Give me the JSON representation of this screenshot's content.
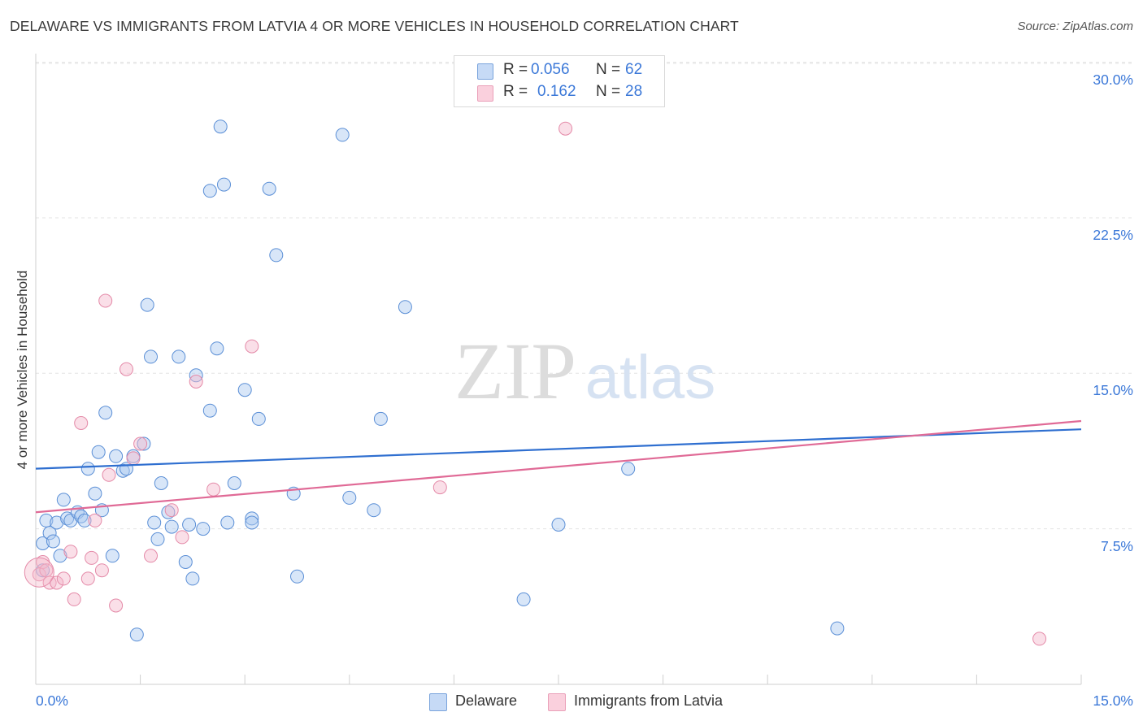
{
  "header": {
    "title": "DELAWARE VS IMMIGRANTS FROM LATVIA 4 OR MORE VEHICLES IN HOUSEHOLD CORRELATION CHART",
    "source": "Source: ZipAtlas.com"
  },
  "watermark": {
    "zip": "ZIP",
    "atlas": "atlas"
  },
  "legend": {
    "r_label": "R =",
    "n_label": "N =",
    "rows": [
      {
        "r": "0.056",
        "n": "62",
        "color": "#a8c8f0"
      },
      {
        "r": "0.162",
        "n": "28",
        "color": "#f5b8cb"
      }
    ]
  },
  "bottom_legend": [
    "Delaware",
    "Immigrants from Latvia"
  ],
  "axes": {
    "y_label": "4 or more Vehicles in Household",
    "y_ticks": [
      "7.5%",
      "15.0%",
      "22.5%",
      "30.0%"
    ],
    "x_ticks": [
      "0.0%",
      "15.0%"
    ]
  },
  "chart_data": {
    "type": "scatter",
    "title": "DELAWARE VS IMMIGRANTS FROM LATVIA 4 OR MORE VEHICLES IN HOUSEHOLD CORRELATION CHART",
    "xlabel": "",
    "ylabel": "4 or more Vehicles in Household",
    "xlim": [
      0,
      15
    ],
    "ylim": [
      0,
      30.5
    ],
    "grid": true,
    "legend_position": "top-center",
    "series": [
      {
        "name": "Delaware",
        "color": "#a8c8f0",
        "stroke": "#5b8fd6",
        "trend": [
          [
            0,
            10.4
          ],
          [
            15,
            12.3
          ]
        ],
        "trend_color": "#2f6fd0",
        "points": [
          [
            0.1,
            6.8
          ],
          [
            0.15,
            7.9
          ],
          [
            0.2,
            7.3
          ],
          [
            0.25,
            6.9
          ],
          [
            0.3,
            7.8
          ],
          [
            0.35,
            6.2
          ],
          [
            0.4,
            8.9
          ],
          [
            0.45,
            8.0
          ],
          [
            0.5,
            7.9
          ],
          [
            0.6,
            8.3
          ],
          [
            0.65,
            8.1
          ],
          [
            0.7,
            7.9
          ],
          [
            0.75,
            10.4
          ],
          [
            0.85,
            9.2
          ],
          [
            0.9,
            11.2
          ],
          [
            0.95,
            8.4
          ],
          [
            1.0,
            13.1
          ],
          [
            1.1,
            6.2
          ],
          [
            1.15,
            11.0
          ],
          [
            1.25,
            10.3
          ],
          [
            1.3,
            10.4
          ],
          [
            1.4,
            11.0
          ],
          [
            1.45,
            2.4
          ],
          [
            1.55,
            11.6
          ],
          [
            1.6,
            18.3
          ],
          [
            1.65,
            15.8
          ],
          [
            1.7,
            7.8
          ],
          [
            1.75,
            7.0
          ],
          [
            1.8,
            9.7
          ],
          [
            1.9,
            8.3
          ],
          [
            1.95,
            7.6
          ],
          [
            2.05,
            15.8
          ],
          [
            2.15,
            5.9
          ],
          [
            2.2,
            7.7
          ],
          [
            2.25,
            5.1
          ],
          [
            2.3,
            14.9
          ],
          [
            2.4,
            7.5
          ],
          [
            2.5,
            13.2
          ],
          [
            2.5,
            23.8
          ],
          [
            2.6,
            16.2
          ],
          [
            2.65,
            26.9
          ],
          [
            2.7,
            24.1
          ],
          [
            2.75,
            7.8
          ],
          [
            2.85,
            9.7
          ],
          [
            3.0,
            14.2
          ],
          [
            3.1,
            8.0
          ],
          [
            3.1,
            7.8
          ],
          [
            3.2,
            12.8
          ],
          [
            3.35,
            23.9
          ],
          [
            3.45,
            20.7
          ],
          [
            3.7,
            9.2
          ],
          [
            3.75,
            5.2
          ],
          [
            4.4,
            26.5
          ],
          [
            4.5,
            9.0
          ],
          [
            4.85,
            8.4
          ],
          [
            4.95,
            12.8
          ],
          [
            5.3,
            18.2
          ],
          [
            7.5,
            7.7
          ],
          [
            8.5,
            10.4
          ],
          [
            7.0,
            4.1
          ],
          [
            11.5,
            2.7
          ],
          [
            0.1,
            5.5
          ]
        ]
      },
      {
        "name": "Immigrants from Latvia",
        "color": "#f5b8cb",
        "stroke": "#e48aa8",
        "trend": [
          [
            0,
            8.3
          ],
          [
            15,
            12.7
          ]
        ],
        "trend_color": "#e06a96",
        "points": [
          [
            0.05,
            5.3
          ],
          [
            0.1,
            5.9
          ],
          [
            0.15,
            5.5
          ],
          [
            0.2,
            4.9
          ],
          [
            0.3,
            4.9
          ],
          [
            0.4,
            5.1
          ],
          [
            0.5,
            6.4
          ],
          [
            0.55,
            4.1
          ],
          [
            0.65,
            12.6
          ],
          [
            0.75,
            5.1
          ],
          [
            0.8,
            6.1
          ],
          [
            0.85,
            7.9
          ],
          [
            0.95,
            5.5
          ],
          [
            1.0,
            18.5
          ],
          [
            1.05,
            10.1
          ],
          [
            1.15,
            3.8
          ],
          [
            1.3,
            15.2
          ],
          [
            1.4,
            10.9
          ],
          [
            1.5,
            11.6
          ],
          [
            1.65,
            6.2
          ],
          [
            1.95,
            8.4
          ],
          [
            2.1,
            7.1
          ],
          [
            2.3,
            14.6
          ],
          [
            2.55,
            9.4
          ],
          [
            3.1,
            16.3
          ],
          [
            5.8,
            9.5
          ],
          [
            7.6,
            26.8
          ],
          [
            14.4,
            2.2
          ]
        ]
      }
    ]
  }
}
